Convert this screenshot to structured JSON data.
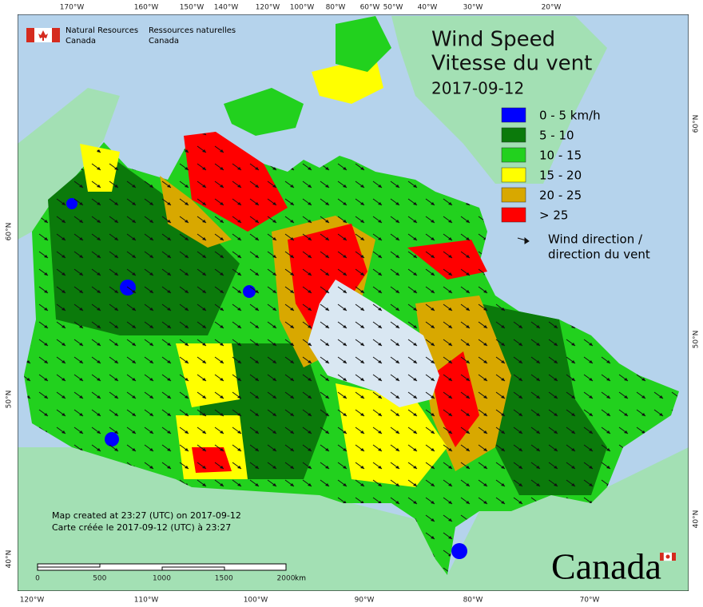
{
  "agency": {
    "en": [
      "Natural Resources",
      "Canada"
    ],
    "fr": [
      "Ressources naturelles",
      "Canada"
    ]
  },
  "title_en": "Wind Speed",
  "title_fr": "Vitesse du vent",
  "date": "2017-09-12",
  "legend": {
    "items": [
      {
        "label": "0 - 5 km/h",
        "color": "#0000ff"
      },
      {
        "label": "5 - 10",
        "color": "#0b7a0b"
      },
      {
        "label": "10 - 15",
        "color": "#22d11e"
      },
      {
        "label": "15 - 20",
        "color": "#ffff00"
      },
      {
        "label": "20 - 25",
        "color": "#d8a800"
      },
      {
        "label": "> 25",
        "color": "#ff0000"
      }
    ],
    "direction": [
      "Wind direction /",
      "direction du vent"
    ]
  },
  "top_longitudes": [
    "170°W",
    "160°W",
    "150°W",
    "140°W",
    "120°W",
    "100°W",
    "80°W",
    "60°W",
    "50°W",
    "40°W",
    "30°W",
    "20°W"
  ],
  "bottom_longitudes": [
    "120°W",
    "110°W",
    "100°W",
    "90°W",
    "80°W",
    "70°W"
  ],
  "left_latitudes": [
    "60°N",
    "50°N",
    "40°N"
  ],
  "right_latitudes": [
    "60°N",
    "50°N",
    "40°N"
  ],
  "credits": [
    "Map created at 23:27 (UTC) on 2017-09-12",
    "Carte créée le 2017-09-12 (UTC) à 23:27"
  ],
  "scale": {
    "ticks": [
      "0",
      "500",
      "1000",
      "1500",
      "2000"
    ],
    "unit": "km"
  },
  "wordmark": "Canada"
}
